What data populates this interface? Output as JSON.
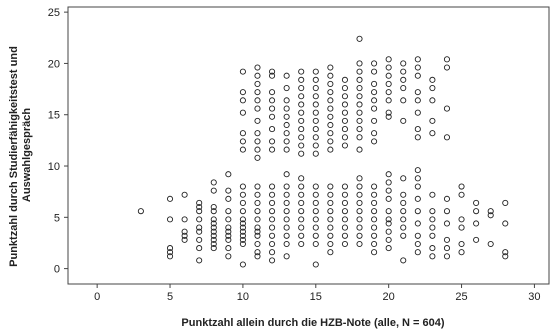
{
  "chart_data": {
    "type": "scatter",
    "xlabel": "Punktzahl allein durch die HZB-Note (alle, N = 604)",
    "ylabel_line1": "Punktzahl durch Studierfähigkeitstest und",
    "ylabel_line2": "Auswahlgespräch",
    "xlim": [
      -2,
      31
    ],
    "ylim": [
      -1.5,
      25.5
    ],
    "xticks": [
      0,
      5,
      10,
      15,
      20,
      25,
      30
    ],
    "yticks": [
      0,
      5,
      10,
      15,
      20,
      25
    ],
    "grid": false,
    "marker": "hollow-circle",
    "marker_color": "#222222",
    "points": [
      [
        3,
        5.6
      ],
      [
        5,
        6.8
      ],
      [
        5,
        4.8
      ],
      [
        5,
        2.0
      ],
      [
        5,
        1.6
      ],
      [
        5,
        1.2
      ],
      [
        6,
        7.2
      ],
      [
        6,
        4.8
      ],
      [
        6,
        3.6
      ],
      [
        6,
        3.2
      ],
      [
        6,
        2.8
      ],
      [
        7,
        6.4
      ],
      [
        7,
        6.0
      ],
      [
        7,
        5.6
      ],
      [
        7,
        4.8
      ],
      [
        7,
        4.0
      ],
      [
        7,
        3.6
      ],
      [
        7,
        2.8
      ],
      [
        7,
        2.0
      ],
      [
        7,
        0.8
      ],
      [
        8,
        8.4
      ],
      [
        8,
        7.6
      ],
      [
        8,
        6.0
      ],
      [
        8,
        5.6
      ],
      [
        8,
        4.8
      ],
      [
        8,
        4.4
      ],
      [
        8,
        4.0
      ],
      [
        8,
        3.6
      ],
      [
        8,
        3.2
      ],
      [
        8,
        2.8
      ],
      [
        8,
        2.4
      ],
      [
        8,
        2.0
      ],
      [
        9,
        9.2
      ],
      [
        9,
        7.6
      ],
      [
        9,
        6.8
      ],
      [
        9,
        5.6
      ],
      [
        9,
        4.8
      ],
      [
        9,
        4.0
      ],
      [
        9,
        3.6
      ],
      [
        9,
        3.2
      ],
      [
        9,
        2.8
      ],
      [
        9,
        2.0
      ],
      [
        9,
        1.2
      ],
      [
        10,
        19.2
      ],
      [
        10,
        17.2
      ],
      [
        10,
        16.4
      ],
      [
        10,
        15.2
      ],
      [
        10,
        13.2
      ],
      [
        10,
        12.4
      ],
      [
        10,
        11.6
      ],
      [
        10,
        8.0
      ],
      [
        10,
        7.2
      ],
      [
        10,
        6.4
      ],
      [
        10,
        5.6
      ],
      [
        10,
        4.8
      ],
      [
        10,
        4.4
      ],
      [
        10,
        4.0
      ],
      [
        10,
        3.6
      ],
      [
        10,
        3.2
      ],
      [
        10,
        2.8
      ],
      [
        10,
        2.4
      ],
      [
        10,
        0.4
      ],
      [
        11,
        19.6
      ],
      [
        11,
        18.8
      ],
      [
        11,
        18.0
      ],
      [
        11,
        17.2
      ],
      [
        11,
        16.4
      ],
      [
        11,
        15.6
      ],
      [
        11,
        14.4
      ],
      [
        11,
        13.2
      ],
      [
        11,
        12.4
      ],
      [
        11,
        11.6
      ],
      [
        11,
        10.8
      ],
      [
        11,
        8.0
      ],
      [
        11,
        7.2
      ],
      [
        11,
        6.4
      ],
      [
        11,
        5.6
      ],
      [
        11,
        4.8
      ],
      [
        11,
        4.0
      ],
      [
        11,
        3.6
      ],
      [
        11,
        3.2
      ],
      [
        11,
        2.4
      ],
      [
        11,
        1.6
      ],
      [
        11,
        1.2
      ],
      [
        12,
        19.2
      ],
      [
        12,
        18.8
      ],
      [
        12,
        17.2
      ],
      [
        12,
        16.4
      ],
      [
        12,
        15.6
      ],
      [
        12,
        14.8
      ],
      [
        12,
        13.6
      ],
      [
        12,
        12.4
      ],
      [
        12,
        11.6
      ],
      [
        12,
        8.0
      ],
      [
        12,
        7.2
      ],
      [
        12,
        6.4
      ],
      [
        12,
        5.6
      ],
      [
        12,
        4.8
      ],
      [
        12,
        4.0
      ],
      [
        12,
        3.2
      ],
      [
        12,
        2.4
      ],
      [
        12,
        1.6
      ],
      [
        12,
        0.8
      ],
      [
        13,
        18.8
      ],
      [
        13,
        17.6
      ],
      [
        13,
        16.4
      ],
      [
        13,
        15.6
      ],
      [
        13,
        14.8
      ],
      [
        13,
        14.0
      ],
      [
        13,
        13.2
      ],
      [
        13,
        12.4
      ],
      [
        13,
        11.6
      ],
      [
        13,
        9.2
      ],
      [
        13,
        8.0
      ],
      [
        13,
        7.2
      ],
      [
        13,
        6.4
      ],
      [
        13,
        5.6
      ],
      [
        13,
        4.8
      ],
      [
        13,
        4.0
      ],
      [
        13,
        3.2
      ],
      [
        13,
        2.4
      ],
      [
        13,
        1.2
      ],
      [
        14,
        19.2
      ],
      [
        14,
        18.4
      ],
      [
        14,
        17.6
      ],
      [
        14,
        16.8
      ],
      [
        14,
        16.0
      ],
      [
        14,
        15.2
      ],
      [
        14,
        14.4
      ],
      [
        14,
        13.6
      ],
      [
        14,
        12.8
      ],
      [
        14,
        12.0
      ],
      [
        14,
        11.2
      ],
      [
        14,
        8.8
      ],
      [
        14,
        8.0
      ],
      [
        14,
        7.2
      ],
      [
        14,
        6.4
      ],
      [
        14,
        5.6
      ],
      [
        14,
        4.8
      ],
      [
        14,
        4.0
      ],
      [
        14,
        3.2
      ],
      [
        14,
        2.4
      ],
      [
        15,
        19.2
      ],
      [
        15,
        18.4
      ],
      [
        15,
        17.6
      ],
      [
        15,
        16.8
      ],
      [
        15,
        16.0
      ],
      [
        15,
        15.2
      ],
      [
        15,
        14.4
      ],
      [
        15,
        13.6
      ],
      [
        15,
        12.8
      ],
      [
        15,
        12.0
      ],
      [
        15,
        11.2
      ],
      [
        15,
        8.0
      ],
      [
        15,
        7.2
      ],
      [
        15,
        6.4
      ],
      [
        15,
        5.6
      ],
      [
        15,
        4.8
      ],
      [
        15,
        4.0
      ],
      [
        15,
        3.2
      ],
      [
        15,
        2.4
      ],
      [
        15,
        0.4
      ],
      [
        16,
        19.6
      ],
      [
        16,
        18.8
      ],
      [
        16,
        18.0
      ],
      [
        16,
        17.2
      ],
      [
        16,
        16.4
      ],
      [
        16,
        15.6
      ],
      [
        16,
        14.8
      ],
      [
        16,
        14.0
      ],
      [
        16,
        13.2
      ],
      [
        16,
        12.4
      ],
      [
        16,
        11.6
      ],
      [
        16,
        8.0
      ],
      [
        16,
        7.2
      ],
      [
        16,
        6.4
      ],
      [
        16,
        5.6
      ],
      [
        16,
        4.8
      ],
      [
        16,
        4.0
      ],
      [
        16,
        3.2
      ],
      [
        16,
        2.4
      ],
      [
        16,
        1.6
      ],
      [
        17,
        18.4
      ],
      [
        17,
        17.6
      ],
      [
        17,
        16.8
      ],
      [
        17,
        16.0
      ],
      [
        17,
        15.2
      ],
      [
        17,
        14.4
      ],
      [
        17,
        13.6
      ],
      [
        17,
        12.8
      ],
      [
        17,
        12.0
      ],
      [
        17,
        8.0
      ],
      [
        17,
        7.2
      ],
      [
        17,
        6.4
      ],
      [
        17,
        5.6
      ],
      [
        17,
        4.8
      ],
      [
        17,
        4.0
      ],
      [
        17,
        3.2
      ],
      [
        17,
        2.4
      ],
      [
        18,
        22.4
      ],
      [
        18,
        20.0
      ],
      [
        18,
        19.2
      ],
      [
        18,
        18.4
      ],
      [
        18,
        17.6
      ],
      [
        18,
        16.8
      ],
      [
        18,
        16.0
      ],
      [
        18,
        15.2
      ],
      [
        18,
        14.4
      ],
      [
        18,
        13.6
      ],
      [
        18,
        12.8
      ],
      [
        18,
        11.6
      ],
      [
        18,
        8.8
      ],
      [
        18,
        8.0
      ],
      [
        18,
        7.2
      ],
      [
        18,
        6.4
      ],
      [
        18,
        5.6
      ],
      [
        18,
        4.8
      ],
      [
        18,
        4.0
      ],
      [
        18,
        3.2
      ],
      [
        18,
        2.4
      ],
      [
        19,
        20.0
      ],
      [
        19,
        19.2
      ],
      [
        19,
        18.0
      ],
      [
        19,
        17.2
      ],
      [
        19,
        16.4
      ],
      [
        19,
        15.6
      ],
      [
        19,
        14.4
      ],
      [
        19,
        13.2
      ],
      [
        19,
        12.4
      ],
      [
        19,
        8.0
      ],
      [
        19,
        7.2
      ],
      [
        19,
        6.4
      ],
      [
        19,
        5.6
      ],
      [
        19,
        4.8
      ],
      [
        19,
        4.0
      ],
      [
        19,
        3.2
      ],
      [
        19,
        2.4
      ],
      [
        19,
        1.6
      ],
      [
        20,
        20.4
      ],
      [
        20,
        19.6
      ],
      [
        20,
        18.8
      ],
      [
        20,
        18.0
      ],
      [
        20,
        17.2
      ],
      [
        20,
        16.4
      ],
      [
        20,
        15.2
      ],
      [
        20,
        14.8
      ],
      [
        20,
        9.2
      ],
      [
        20,
        8.4
      ],
      [
        20,
        7.6
      ],
      [
        20,
        6.8
      ],
      [
        20,
        5.6
      ],
      [
        20,
        4.8
      ],
      [
        20,
        4.4
      ],
      [
        20,
        3.6
      ],
      [
        20,
        2.8
      ],
      [
        20,
        2.0
      ],
      [
        21,
        20.0
      ],
      [
        21,
        19.2
      ],
      [
        21,
        18.4
      ],
      [
        21,
        17.6
      ],
      [
        21,
        16.4
      ],
      [
        21,
        14.4
      ],
      [
        21,
        8.8
      ],
      [
        21,
        7.2
      ],
      [
        21,
        6.4
      ],
      [
        21,
        5.6
      ],
      [
        21,
        4.8
      ],
      [
        21,
        4.0
      ],
      [
        21,
        3.2
      ],
      [
        21,
        0.8
      ],
      [
        22,
        20.4
      ],
      [
        22,
        19.6
      ],
      [
        22,
        18.8
      ],
      [
        22,
        17.2
      ],
      [
        22,
        16.4
      ],
      [
        22,
        15.2
      ],
      [
        22,
        13.6
      ],
      [
        22,
        12.8
      ],
      [
        22,
        9.6
      ],
      [
        22,
        8.8
      ],
      [
        22,
        8.0
      ],
      [
        22,
        6.8
      ],
      [
        22,
        5.6
      ],
      [
        22,
        4.4
      ],
      [
        22,
        3.2
      ],
      [
        22,
        2.4
      ],
      [
        22,
        1.6
      ],
      [
        23,
        18.4
      ],
      [
        23,
        17.6
      ],
      [
        23,
        16.4
      ],
      [
        23,
        14.4
      ],
      [
        23,
        13.2
      ],
      [
        23,
        7.2
      ],
      [
        23,
        5.6
      ],
      [
        23,
        4.8
      ],
      [
        23,
        4.0
      ],
      [
        23,
        3.2
      ],
      [
        23,
        2.0
      ],
      [
        23,
        1.2
      ],
      [
        24,
        20.4
      ],
      [
        24,
        19.6
      ],
      [
        24,
        15.6
      ],
      [
        24,
        12.8
      ],
      [
        24,
        6.8
      ],
      [
        24,
        5.6
      ],
      [
        24,
        4.4
      ],
      [
        24,
        2.8
      ],
      [
        24,
        2.0
      ],
      [
        24,
        1.2
      ],
      [
        25,
        8.0
      ],
      [
        25,
        7.2
      ],
      [
        25,
        4.8
      ],
      [
        25,
        4.0
      ],
      [
        25,
        2.4
      ],
      [
        25,
        1.6
      ],
      [
        26,
        6.4
      ],
      [
        26,
        5.6
      ],
      [
        26,
        4.4
      ],
      [
        26,
        2.8
      ],
      [
        27,
        5.6
      ],
      [
        27,
        5.2
      ],
      [
        27,
        2.4
      ],
      [
        28,
        6.4
      ],
      [
        28,
        4.4
      ],
      [
        28,
        1.6
      ],
      [
        28,
        1.2
      ]
    ]
  }
}
